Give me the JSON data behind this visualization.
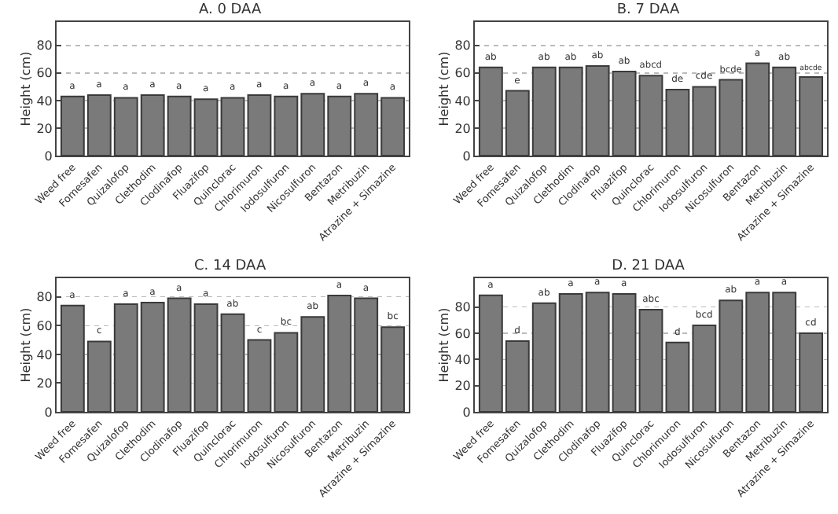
{
  "chart_data": [
    {
      "type": "bar",
      "title": "A. 0 DAA",
      "ylabel": "Height (cm)",
      "categories": [
        "Weed free",
        "Fomesafen",
        "Quizalofop",
        "Clethodim",
        "Clodinafop",
        "Fluazifop",
        "Quinclorac",
        "Chlorimuron",
        "Iodosulfuron",
        "Nicosulfuron",
        "Bentazon",
        "Metribuzin",
        "Atrazine + Simazine"
      ],
      "color": "#7a7a7a",
      "values": [
        43,
        44,
        42,
        44,
        43,
        41,
        42,
        44,
        43,
        45,
        43,
        45,
        42
      ],
      "value_labels": [
        "a",
        "a",
        "a",
        "a",
        "a",
        "a",
        "a",
        "a",
        "a",
        "a",
        "a",
        "a",
        "a"
      ],
      "ylim": [
        0,
        97
      ],
      "yticks": [
        0,
        20,
        40,
        60,
        80
      ],
      "grid": "y",
      "legend": false
    },
    {
      "type": "bar",
      "title": "B. 7 DAA",
      "ylabel": "Height (cm)",
      "categories": [
        "Weed free",
        "Fomesafen",
        "Quizalofop",
        "Clethodim",
        "Clodinafop",
        "Fluazifop",
        "Quinclorac",
        "Chlorimuron",
        "Iodosulfuron",
        "Nicosulfuron",
        "Bentazon",
        "Metribuzin",
        "Atrazine + Simazine"
      ],
      "color": "#7a7a7a",
      "values": [
        64,
        47,
        64,
        64,
        65,
        61,
        58,
        48,
        50,
        55,
        67,
        64,
        57
      ],
      "value_labels": [
        "ab",
        "e",
        "ab",
        "ab",
        "ab",
        "ab",
        "abcd",
        "de",
        "cde",
        "bcde",
        "a",
        "ab",
        "abcde"
      ],
      "ylim": [
        0,
        97
      ],
      "yticks": [
        0,
        20,
        40,
        60,
        80
      ],
      "grid": "y",
      "legend": false
    },
    {
      "type": "bar",
      "title": "C. 14 DAA",
      "ylabel": "Height (cm)",
      "categories": [
        "Weed free",
        "Fomesafen",
        "Quizalofop",
        "Clethodim",
        "Clodinafop",
        "Fluazifop",
        "Quinclorac",
        "Chlorimuron",
        "Iodosulfuron",
        "Nicosulfuron",
        "Bentazon",
        "Metribuzin",
        "Atrazine + Simazine"
      ],
      "color": "#7a7a7a",
      "values": [
        74,
        49,
        75,
        76,
        79,
        75,
        68,
        50,
        55,
        66,
        81,
        79,
        59
      ],
      "value_labels": [
        "a",
        "c",
        "a",
        "a",
        "a",
        "a",
        "ab",
        "c",
        "bc",
        "ab",
        "a",
        "a",
        "bc"
      ],
      "ylim": [
        0,
        93
      ],
      "yticks": [
        0,
        20,
        40,
        60,
        80
      ],
      "grid": "y",
      "legend": false
    },
    {
      "type": "bar",
      "title": "D. 21 DAA",
      "ylabel": "Height (cm)",
      "categories": [
        "Weed free",
        "Fomesafen",
        "Quizalofop",
        "Clethodim",
        "Clodinafop",
        "Fluazifop",
        "Quinclorac",
        "Chlorimuron",
        "Iodosulfuron",
        "Nicosulfuron",
        "Bentazon",
        "Metribuzin",
        "Atrazine + Simazine"
      ],
      "color": "#7a7a7a",
      "values": [
        89,
        54,
        83,
        90,
        91,
        90,
        78,
        53,
        66,
        85,
        91,
        91,
        60
      ],
      "value_labels": [
        "a",
        "d",
        "ab",
        "a",
        "a",
        "a",
        "abc",
        "d",
        "bcd",
        "ab",
        "a",
        "a",
        "cd"
      ],
      "ylim": [
        0,
        102
      ],
      "yticks": [
        0,
        20,
        40,
        60,
        80
      ],
      "grid": "y",
      "legend": false
    }
  ]
}
